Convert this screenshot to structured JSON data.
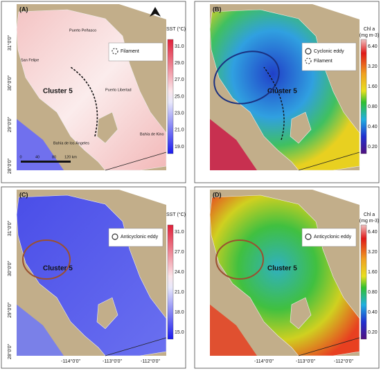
{
  "lat_labels": [
    "31°0'0\"",
    "30°0'0\"",
    "29°0'0\"",
    "28°0'0\""
  ],
  "lon_labels": [
    "-114°0'0\"",
    "-113°0'0\"",
    "-112°0'0\""
  ],
  "scale_bar": [
    "0",
    "40",
    "80",
    "120 km"
  ],
  "places": [
    "Puerto Peñasco",
    "San Felipe",
    "Puerto Libertad",
    "Bahía de los Ángeles",
    "Bahía de Kino"
  ],
  "panels": [
    {
      "label": "(A)",
      "cluster": "Cluster 5",
      "colorbar_title": [
        "SST (°C)"
      ],
      "colorbar_ticks": [
        "31.0",
        "29.0",
        "27.0",
        "25.0",
        "23.0",
        "21.0",
        "19.0"
      ],
      "legend": [
        "Filament"
      ]
    },
    {
      "label": "(B)",
      "cluster": "Cluster 5",
      "colorbar_title": [
        "Chl a",
        "(mg m-3)"
      ],
      "colorbar_ticks": [
        "6.40",
        "3.20",
        "1.60",
        "0.80",
        "0.40",
        "0.20"
      ],
      "legend": [
        "Cyclonic eddy",
        "Filament"
      ]
    },
    {
      "label": "(C)",
      "cluster": "Cluster 5",
      "colorbar_title": [
        "SST (°C)"
      ],
      "colorbar_ticks": [
        "31.0",
        "27.0",
        "24.0",
        "21.0",
        "18.0",
        "15.0"
      ],
      "legend": [
        "Anticyclonic eddy"
      ]
    },
    {
      "label": "(D)",
      "cluster": "Cluster 5",
      "colorbar_title": [
        "Chl a",
        "(mg m-3)"
      ],
      "colorbar_ticks": [
        "6.40",
        "3.20",
        "1.60",
        "0.80",
        "0.40",
        "0.20"
      ],
      "legend": [
        "Anticyclonic eddy"
      ]
    }
  ]
}
